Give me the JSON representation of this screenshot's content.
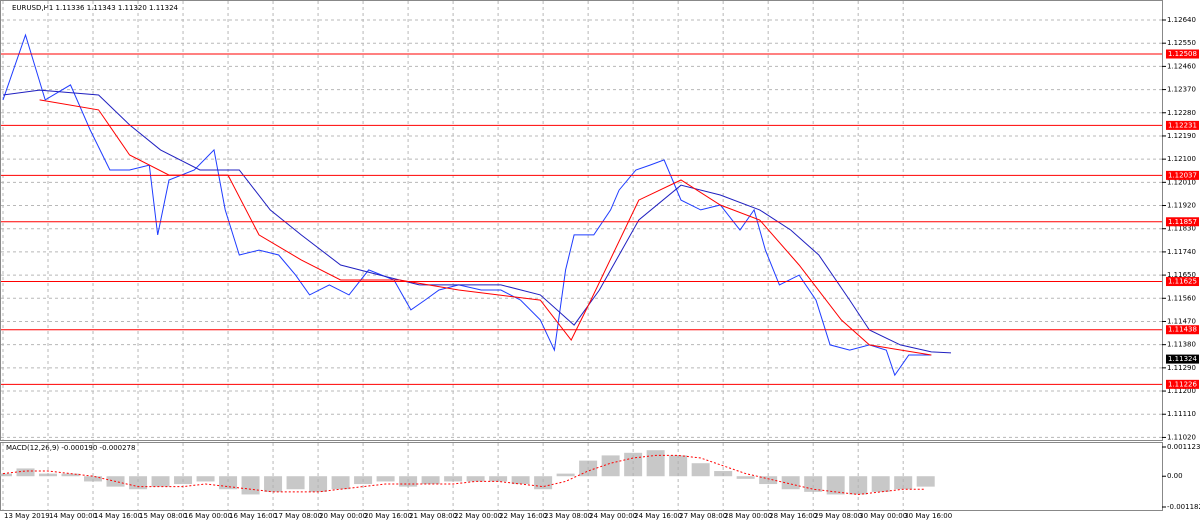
{
  "chart_data": [
    {
      "type": "line",
      "title": "EURUSD,H1  1.11336 1.11343 1.11320 1.11324",
      "xlim": [
        0,
        412
      ],
      "ylim": [
        1.1101,
        1.12706
      ],
      "grid": true,
      "xticks": [
        {
          "value": 0,
          "label": "13 May 2019"
        },
        {
          "value": 16,
          "label": "14 May 00:00"
        },
        {
          "value": 32,
          "label": "14 May 16:00"
        },
        {
          "value": 48,
          "label": "15 May 08:00"
        },
        {
          "value": 64,
          "label": "16 May 00:00"
        },
        {
          "value": 80,
          "label": "16 May 16:00"
        },
        {
          "value": 96,
          "label": "17 May 08:00"
        },
        {
          "value": 112,
          "label": "20 May 00:00"
        },
        {
          "value": 128,
          "label": "20 May 16:00"
        },
        {
          "value": 144,
          "label": "21 May 08:00"
        },
        {
          "value": 160,
          "label": "22 May 00:00"
        },
        {
          "value": 176,
          "label": "22 May 16:00"
        },
        {
          "value": 192,
          "label": "23 May 08:00"
        },
        {
          "value": 208,
          "label": "24 May 00:00"
        },
        {
          "value": 224,
          "label": "24 May 16:00"
        },
        {
          "value": 240,
          "label": "27 May 08:00"
        },
        {
          "value": 256,
          "label": "28 May 00:00"
        },
        {
          "value": 272,
          "label": "28 May 16:00"
        },
        {
          "value": 288,
          "label": "29 May 08:00"
        },
        {
          "value": 304,
          "label": "30 May 00:00"
        },
        {
          "value": 320,
          "label": "30 May 16:00"
        }
      ],
      "yticks": [
        {
          "value": 1.1264,
          "label": "1.12640"
        },
        {
          "value": 1.1255,
          "label": "1.12550"
        },
        {
          "value": 1.1246,
          "label": "1.12460"
        },
        {
          "value": 1.1237,
          "label": "1.12370"
        },
        {
          "value": 1.1228,
          "label": "1.12280"
        },
        {
          "value": 1.1219,
          "label": "1.12190"
        },
        {
          "value": 1.121,
          "label": "1.12100"
        },
        {
          "value": 1.1201,
          "label": "1.12010"
        },
        {
          "value": 1.1192,
          "label": "1.11920"
        },
        {
          "value": 1.1183,
          "label": "1.11830"
        },
        {
          "value": 1.1174,
          "label": "1.11740"
        },
        {
          "value": 1.1165,
          "label": "1.11650"
        },
        {
          "value": 1.1156,
          "label": "1.11560"
        },
        {
          "value": 1.1147,
          "label": "1.11470"
        },
        {
          "value": 1.1138,
          "label": "1.11380"
        },
        {
          "value": 1.1129,
          "label": "1.11290"
        },
        {
          "value": 1.112,
          "label": "1.11200"
        },
        {
          "value": 1.1111,
          "label": "1.11110"
        },
        {
          "value": 1.1102,
          "label": "1.11020"
        }
      ],
      "levels": [
        1.12508,
        1.12231,
        1.12037,
        1.11857,
        1.11625,
        1.11438,
        1.11226
      ],
      "level_color": "#ff0000",
      "last": 1.11324,
      "series": [
        {
          "color": "#1f3cff",
          "x": [
            0,
            8,
            15,
            24,
            31,
            38,
            45,
            52,
            55,
            59,
            68,
            75,
            79,
            84,
            91,
            98,
            104,
            109,
            116,
            123,
            130,
            139,
            145,
            150,
            155,
            162,
            170,
            177,
            184,
            191,
            196,
            200,
            203,
            210,
            216,
            219,
            225,
            230,
            235,
            241,
            248,
            255,
            262,
            267,
            271,
            276,
            283,
            289,
            294,
            301,
            308,
            314,
            317,
            322,
            330
          ],
          "values": [
            1.1233,
            1.12582,
            1.1233,
            1.12388,
            1.12213,
            1.12058,
            1.12058,
            1.12077,
            1.11806,
            1.12019,
            1.12058,
            1.12136,
            1.11903,
            1.11728,
            1.11747,
            1.11728,
            1.1165,
            1.11573,
            1.11612,
            1.11573,
            1.1167,
            1.11631,
            1.11515,
            1.11553,
            1.11592,
            1.11612,
            1.11592,
            1.11592,
            1.11553,
            1.11476,
            1.11359,
            1.1167,
            1.11806,
            1.11806,
            1.11903,
            1.1198,
            1.12058,
            1.12077,
            1.12097,
            1.11941,
            1.11903,
            1.11922,
            1.11825,
            1.11903,
            1.11747,
            1.11612,
            1.1165,
            1.11553,
            1.11379,
            1.11359,
            1.11379,
            1.11359,
            1.11262,
            1.1134,
            1.1134
          ]
        },
        {
          "color": "#2020c0",
          "x": [
            0,
            13,
            34,
            45,
            56,
            70,
            84,
            95,
            106,
            120,
            134,
            148,
            162,
            177,
            191,
            203,
            212,
            226,
            241,
            255,
            269,
            280,
            290,
            301,
            308,
            319,
            330,
            337
          ],
          "values": [
            1.12349,
            1.12368,
            1.12349,
            1.12233,
            1.12136,
            1.12058,
            1.12058,
            1.11903,
            1.11806,
            1.11689,
            1.1165,
            1.11612,
            1.11612,
            1.11612,
            1.11573,
            1.11456,
            1.11592,
            1.11864,
            1.11999,
            1.11961,
            1.11903,
            1.11825,
            1.11728,
            1.11553,
            1.11437,
            1.11379,
            1.11352,
            1.11348
          ]
        },
        {
          "color": "#ff0000",
          "x": [
            13,
            34,
            45,
            59,
            80,
            91,
            106,
            120,
            141,
            162,
            191,
            202,
            209,
            226,
            241,
            255,
            269,
            283,
            298,
            308,
            330
          ],
          "values": [
            1.1233,
            1.12291,
            1.12116,
            1.12038,
            1.12038,
            1.11806,
            1.11709,
            1.11631,
            1.11631,
            1.11592,
            1.11553,
            1.11398,
            1.11553,
            1.11941,
            1.12019,
            1.11922,
            1.11864,
            1.11689,
            1.11476,
            1.11379,
            1.1134
          ]
        }
      ]
    },
    {
      "type": "bar",
      "title": "MACD(12,26,9) -0.000190 -0.000278",
      "xlim": [
        0,
        412
      ],
      "ylim": [
        -0.001182,
        0.001123
      ],
      "yticks": [
        0.001123,
        {
          "value": 0,
          "label": "0.00"
        },
        -0.001182
      ],
      "x": [
        0,
        8,
        16,
        24,
        32,
        40,
        48,
        56,
        64,
        72,
        80,
        88,
        96,
        104,
        112,
        120,
        128,
        136,
        144,
        152,
        160,
        168,
        176,
        184,
        192,
        200,
        208,
        216,
        224,
        232,
        240,
        248,
        256,
        264,
        272,
        280,
        288,
        296,
        304,
        312,
        320,
        328
      ],
      "series": [
        {
          "color": "#b0b0b0",
          "style": "bar",
          "values": [
            0.0001,
            0.0003,
            0.0001,
            0.0001,
            -0.0002,
            -0.0004,
            -0.0005,
            -0.0004,
            -0.0003,
            -0.0002,
            -0.0005,
            -0.0007,
            -0.0006,
            -0.0005,
            -0.0006,
            -0.0005,
            -0.0003,
            -0.0002,
            -0.0004,
            -0.0003,
            -0.0002,
            -0.0002,
            -0.0002,
            -0.0003,
            -0.0005,
            0.0001,
            0.0006,
            0.0008,
            0.0009,
            0.001,
            0.0008,
            0.0005,
            0.0002,
            -0.0001,
            -0.0003,
            -0.0005,
            -0.0006,
            -0.0007,
            -0.0007,
            -0.0006,
            -0.0005,
            -0.0004
          ]
        },
        {
          "color": "#ff0000",
          "style": "line",
          "values": [
            0.0001,
            0.0002,
            0.0002,
            0.0001,
            0,
            -0.0002,
            -0.0004,
            -0.0004,
            -0.0004,
            -0.0003,
            -0.0004,
            -0.0005,
            -0.0006,
            -0.0006,
            -0.0006,
            -0.0005,
            -0.0004,
            -0.0003,
            -0.0003,
            -0.0003,
            -0.0003,
            -0.0002,
            -0.0002,
            -0.0003,
            -0.0004,
            -0.0002,
            0.0002,
            0.0005,
            0.0007,
            0.0008,
            0.0008,
            0.0007,
            0.0004,
            0.0001,
            -0.0001,
            -0.0003,
            -0.0005,
            -0.0006,
            -0.0007,
            -0.0006,
            -0.0005,
            -0.0005
          ]
        }
      ]
    }
  ]
}
